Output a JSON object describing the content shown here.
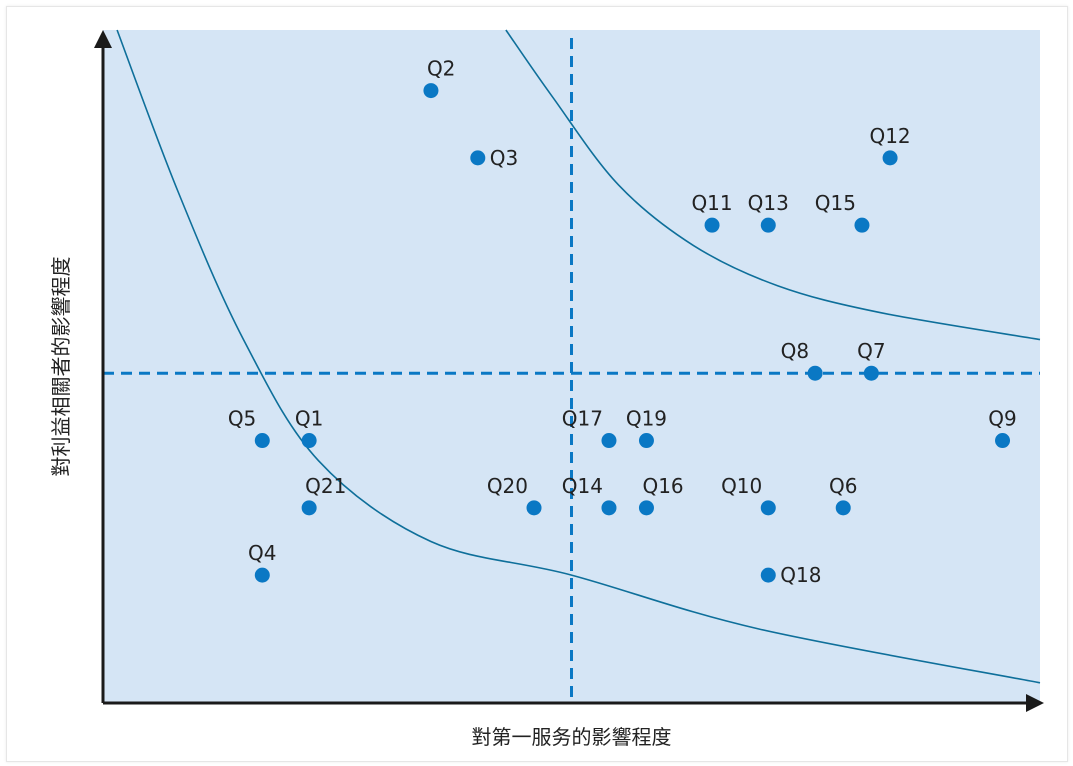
{
  "chart_data": {
    "type": "scatter",
    "xlabel": "對第一服务的影響程度",
    "ylabel": "對利益相關者的影響程度",
    "xlim": [
      0,
      10
    ],
    "ylim": [
      0,
      10
    ],
    "grid": false,
    "background_color": "#d5e5f5",
    "point_color": "#0a78c4",
    "curve_color": "#0e6f9a",
    "divider_color": "#0a78c4",
    "axis_color": "#1a1a1a",
    "divider_x": 5.0,
    "divider_y": 4.9,
    "points": [
      {
        "label": "Q1",
        "x": 2.2,
        "y": 3.9,
        "label_pos": "top"
      },
      {
        "label": "Q2",
        "x": 3.5,
        "y": 9.1,
        "label_pos": "top-right"
      },
      {
        "label": "Q3",
        "x": 4.0,
        "y": 8.1,
        "label_pos": "right"
      },
      {
        "label": "Q4",
        "x": 1.7,
        "y": 1.9,
        "label_pos": "top"
      },
      {
        "label": "Q5",
        "x": 1.7,
        "y": 3.9,
        "label_pos": "top-left"
      },
      {
        "label": "Q6",
        "x": 7.9,
        "y": 2.9,
        "label_pos": "top"
      },
      {
        "label": "Q7",
        "x": 8.2,
        "y": 4.9,
        "label_pos": "top"
      },
      {
        "label": "Q8",
        "x": 7.6,
        "y": 4.9,
        "label_pos": "top-left"
      },
      {
        "label": "Q9",
        "x": 9.6,
        "y": 3.9,
        "label_pos": "top"
      },
      {
        "label": "Q10",
        "x": 7.1,
        "y": 2.9,
        "label_pos": "top-left"
      },
      {
        "label": "Q11",
        "x": 6.5,
        "y": 7.1,
        "label_pos": "top"
      },
      {
        "label": "Q12",
        "x": 8.4,
        "y": 8.1,
        "label_pos": "top"
      },
      {
        "label": "Q13",
        "x": 7.1,
        "y": 7.1,
        "label_pos": "top"
      },
      {
        "label": "Q14",
        "x": 5.4,
        "y": 2.9,
        "label_pos": "top-left"
      },
      {
        "label": "Q15",
        "x": 8.1,
        "y": 7.1,
        "label_pos": "top-left"
      },
      {
        "label": "Q16",
        "x": 5.8,
        "y": 2.9,
        "label_pos": "top-right"
      },
      {
        "label": "Q17",
        "x": 5.4,
        "y": 3.9,
        "label_pos": "top-left"
      },
      {
        "label": "Q18",
        "x": 7.1,
        "y": 1.9,
        "label_pos": "right"
      },
      {
        "label": "Q19",
        "x": 5.8,
        "y": 3.9,
        "label_pos": "top"
      },
      {
        "label": "Q20",
        "x": 4.6,
        "y": 2.9,
        "label_pos": "top-left"
      },
      {
        "label": "Q21",
        "x": 2.2,
        "y": 2.9,
        "label_pos": "top-right"
      }
    ],
    "curves": [
      {
        "x": [
          0.15,
          0.8,
          1.5,
          2.3,
          3.5,
          5.0,
          7.0,
          10.0
        ],
        "y": [
          10.0,
          7.6,
          5.4,
          3.6,
          2.4,
          1.9,
          1.1,
          0.3
        ]
      },
      {
        "x": [
          4.3,
          4.8,
          5.5,
          6.3,
          7.2,
          8.3,
          10.0
        ],
        "y": [
          10.0,
          9.0,
          7.7,
          6.8,
          6.2,
          5.8,
          5.4
        ]
      }
    ]
  }
}
